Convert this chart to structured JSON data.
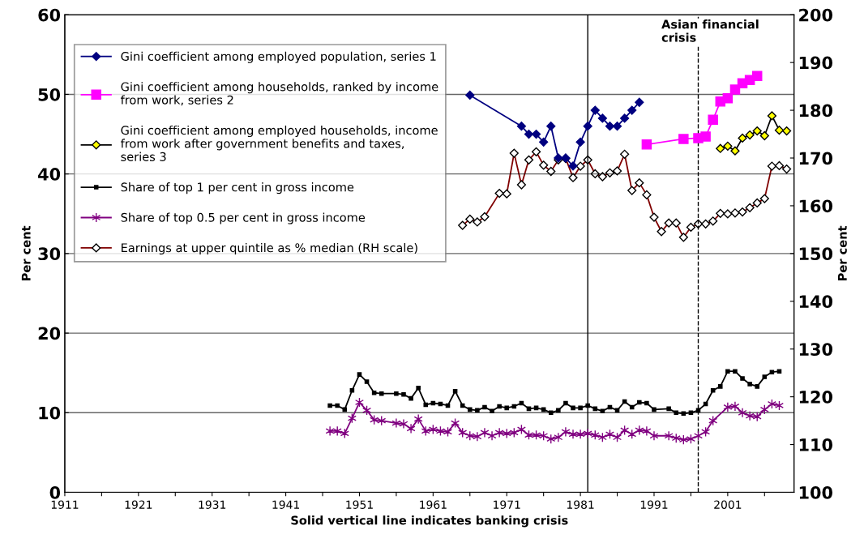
{
  "chart_data": {
    "type": "line",
    "xlabel": "Solid vertical line indicates banking crisis",
    "ylabel": "Per cent",
    "y2label": "Per cent",
    "xlim": [
      1911,
      2010
    ],
    "xticks": [
      1911,
      {
        "value": 1916,
        "label": null
      },
      1921,
      {
        "value": 1926,
        "label": null
      },
      1931,
      {
        "value": 1936,
        "label": null
      },
      1941,
      {
        "value": 1946,
        "label": null
      },
      1951,
      {
        "value": 1956,
        "label": null
      },
      1961,
      {
        "value": 1966,
        "label": null
      },
      1971,
      {
        "value": 1976,
        "label": null
      },
      1981,
      {
        "value": 1986,
        "label": null
      },
      1991,
      {
        "value": 1996,
        "label": null
      },
      2001,
      {
        "value": 2006,
        "label": null
      }
    ],
    "ylim": [
      0,
      60
    ],
    "yticks": [
      0,
      10,
      20,
      30,
      40,
      50,
      60
    ],
    "y2lim": [
      100,
      200
    ],
    "y2ticks": [
      100,
      110,
      120,
      130,
      140,
      150,
      160,
      170,
      180,
      190,
      200
    ],
    "grid": "y",
    "legend": "top left",
    "ref_lines": [
      {
        "axis": "x",
        "value": 1982,
        "label": null,
        "color": "#000000",
        "line_style": "solid"
      },
      {
        "axis": "x",
        "value": 1997,
        "label": "Asian financial crisis",
        "color": "#000000",
        "line_style": "dashed"
      }
    ],
    "series": [
      {
        "name": "Gini coefficient among employed population, series 1",
        "color": "#000080",
        "marker": "diamond",
        "x": [
          1966,
          1973,
          1974,
          1975,
          1976,
          1977,
          1978,
          1979,
          1980,
          1981,
          1982,
          1983,
          1984,
          1985,
          1986,
          1987,
          1988,
          1989
        ],
        "values": [
          49.9,
          46,
          45,
          45,
          44,
          46,
          42,
          42,
          41,
          44,
          46,
          48,
          47,
          46,
          46,
          47,
          48,
          49
        ]
      },
      {
        "name": "Gini coefficient among households, ranked by income from work, series 2",
        "color": "#ff00ff",
        "marker": "square",
        "x": [
          1990,
          1995,
          1997,
          1998,
          1999,
          2000,
          2001,
          2002,
          2003,
          2004,
          2005
        ],
        "values": [
          43.7,
          44.4,
          44.5,
          44.7,
          46.8,
          49.1,
          49.5,
          50.6,
          51.4,
          51.8,
          52.3
        ]
      },
      {
        "name": "Gini coefficient among employed households, income from work after government benefits and taxes, series 3",
        "color": "#ffff00",
        "marker": "diamond",
        "x": [
          2000,
          2001,
          2002,
          2003,
          2004,
          2005,
          2006,
          2007,
          2008,
          2009
        ],
        "values": [
          43.2,
          43.5,
          42.9,
          44.5,
          44.9,
          45.4,
          44.8,
          47.3,
          45.5,
          45.4
        ]
      },
      {
        "name": "Share of top 1 per cent in gross income",
        "color": "#000000",
        "marker": "square",
        "x": [
          1947,
          1948,
          1949,
          1950,
          1951,
          1952,
          1953,
          1954,
          1956,
          1957,
          1958,
          1959,
          1960,
          1961,
          1962,
          1963,
          1964,
          1965,
          1966,
          1967,
          1968,
          1969,
          1970,
          1971,
          1972,
          1973,
          1974,
          1975,
          1976,
          1977,
          1978,
          1979,
          1980,
          1981,
          1982,
          1983,
          1984,
          1985,
          1986,
          1987,
          1988,
          1989,
          1990,
          1991,
          1993,
          1994,
          1995,
          1996,
          1997,
          1998,
          1999,
          2000,
          2001,
          2002,
          2003,
          2004,
          2005,
          2006,
          2007,
          2008
        ],
        "values": [
          10.9,
          10.9,
          10.4,
          12.8,
          14.8,
          13.9,
          12.5,
          12.4,
          12.4,
          12.3,
          11.8,
          13.1,
          11.0,
          11.2,
          11.1,
          10.9,
          12.7,
          10.9,
          10.4,
          10.3,
          10.7,
          10.2,
          10.8,
          10.6,
          10.8,
          11.2,
          10.5,
          10.6,
          10.4,
          10.0,
          10.3,
          11.2,
          10.6,
          10.6,
          10.9,
          10.5,
          10.2,
          10.7,
          10.3,
          11.4,
          10.7,
          11.3,
          11.2,
          10.4,
          10.5,
          10.0,
          9.9,
          10.0,
          10.3,
          11.1,
          12.8,
          13.3,
          15.2,
          15.2,
          14.3,
          13.6,
          13.3,
          14.5,
          15.1,
          15.2
        ]
      },
      {
        "name": "Share of top 0.5 per cent in gross income",
        "color": "#800080",
        "marker": "cross",
        "x": [
          1947,
          1948,
          1949,
          1950,
          1951,
          1952,
          1953,
          1954,
          1956,
          1957,
          1958,
          1959,
          1960,
          1961,
          1962,
          1963,
          1964,
          1965,
          1966,
          1967,
          1968,
          1969,
          1970,
          1971,
          1972,
          1973,
          1974,
          1975,
          1976,
          1977,
          1978,
          1979,
          1980,
          1981,
          1982,
          1983,
          1984,
          1985,
          1986,
          1987,
          1988,
          1989,
          1990,
          1991,
          1993,
          1994,
          1995,
          1996,
          1997,
          1998,
          1999,
          2001,
          2002,
          2003,
          2004,
          2005,
          2006,
          2007,
          2008
        ],
        "values": [
          7.7,
          7.7,
          7.4,
          9.3,
          11.3,
          10.3,
          9.1,
          9.0,
          8.7,
          8.6,
          8.0,
          9.2,
          7.7,
          7.9,
          7.7,
          7.6,
          8.7,
          7.5,
          7.1,
          7.0,
          7.5,
          7.1,
          7.5,
          7.4,
          7.5,
          7.9,
          7.2,
          7.2,
          7.1,
          6.7,
          6.9,
          7.6,
          7.3,
          7.3,
          7.4,
          7.2,
          6.9,
          7.3,
          6.9,
          7.8,
          7.3,
          7.8,
          7.7,
          7.1,
          7.1,
          6.8,
          6.6,
          6.7,
          7.1,
          7.6,
          9.0,
          10.7,
          10.8,
          10.0,
          9.6,
          9.5,
          10.4,
          11.1,
          10.9
        ]
      },
      {
        "name": "Earnings at upper quintile as % median (RH scale)",
        "color": "#800000",
        "marker": "diamond",
        "axis": "y2",
        "x": [
          1965,
          1966,
          1967,
          1968,
          1970,
          1971,
          1972,
          1973,
          1974,
          1975,
          1976,
          1977,
          1978,
          1979,
          1980,
          1981,
          1982,
          1983,
          1984,
          1985,
          1986,
          1987,
          1988,
          1989,
          1990,
          1991,
          1992,
          1993,
          1994,
          1995,
          1996,
          1997,
          1998,
          1999,
          2000,
          2001,
          2002,
          2003,
          2004,
          2005,
          2006,
          2007,
          2008,
          2009
        ],
        "values": [
          155.9,
          157.2,
          156.6,
          157.7,
          162.6,
          162.5,
          171.0,
          164.4,
          169.6,
          171.3,
          168.5,
          167.2,
          169.6,
          169.9,
          165.9,
          168.3,
          169.6,
          166.7,
          166.1,
          166.9,
          167.3,
          170.8,
          163.2,
          164.8,
          162.3,
          157.6,
          154.6,
          156.4,
          156.4,
          153.4,
          155.5,
          156.2,
          156.2,
          156.8,
          158.4,
          158.3,
          158.5,
          158.7,
          159.6,
          160.6,
          161.5,
          168.3,
          168.4,
          167.7
        ]
      }
    ]
  }
}
